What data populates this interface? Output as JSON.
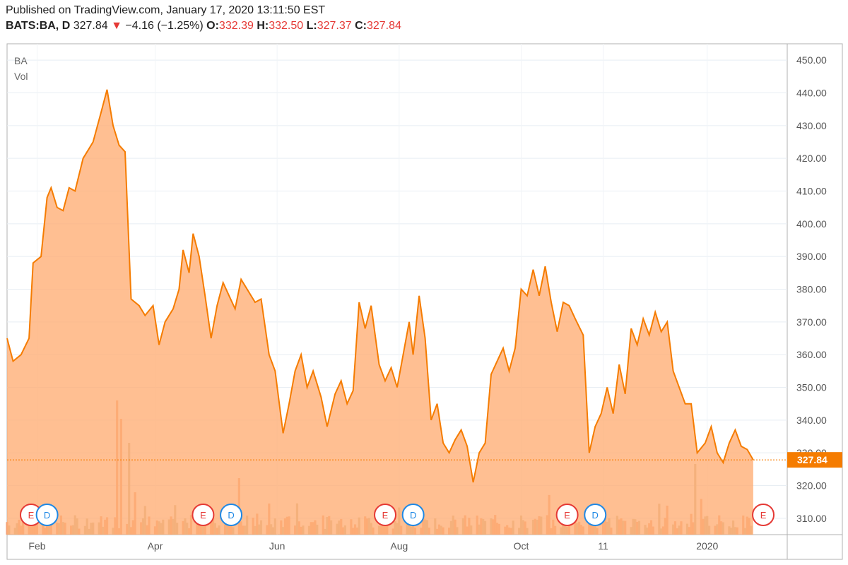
{
  "header": {
    "published": "Published on TradingView.com, January 17, 2020 13:11:50 EST",
    "symbol": "BATS:BA, D",
    "last": "327.84",
    "change_arrow": "▼",
    "change": "−4.16 (−1.25%)",
    "o_label": "O:",
    "o_value": "332.39",
    "h_label": "H:",
    "h_value": "332.50",
    "l_label": "L:",
    "l_value": "327.37",
    "c_label": "C:",
    "c_value": "327.84"
  },
  "colors": {
    "line": "#f57c00",
    "fill": "#ffad73",
    "vol_up": "#c8b48a",
    "vol_down": "#f59a6a",
    "earnings": "#e53935",
    "dividend": "#1e88e5",
    "price_tag": "#f57c00"
  },
  "chart_data": {
    "type": "area",
    "title": "BA",
    "secondary_label": "Vol",
    "ylim": [
      305,
      455
    ],
    "yticks": [
      "450.00",
      "440.00",
      "430.00",
      "420.00",
      "410.00",
      "400.00",
      "390.00",
      "380.00",
      "370.00",
      "360.00",
      "350.00",
      "340.00",
      "330.00",
      "320.00",
      "310.00"
    ],
    "ytick_values": [
      450,
      440,
      430,
      420,
      410,
      400,
      390,
      380,
      370,
      360,
      350,
      340,
      330,
      320,
      310
    ],
    "xticks": [
      "Feb",
      "Apr",
      "Jun",
      "Aug",
      "Oct",
      "11",
      "2020"
    ],
    "xtick_dates": [
      "2019-02-01",
      "2019-04-01",
      "2019-06-01",
      "2019-08-01",
      "2019-10-01",
      "2019-11-11",
      "2020-01-02"
    ],
    "x_start": "2019-01-17",
    "last_price_label": "327.84",
    "series": [
      {
        "points": [
          [
            "2019-01-17",
            365
          ],
          [
            "2019-01-20",
            358
          ],
          [
            "2019-01-24",
            360
          ],
          [
            "2019-01-28",
            365
          ],
          [
            "2019-01-30",
            388
          ],
          [
            "2019-02-03",
            390
          ],
          [
            "2019-02-06",
            408
          ],
          [
            "2019-02-08",
            411
          ],
          [
            "2019-02-11",
            405
          ],
          [
            "2019-02-14",
            404
          ],
          [
            "2019-02-17",
            411
          ],
          [
            "2019-02-20",
            410
          ],
          [
            "2019-02-24",
            420
          ],
          [
            "2019-02-27",
            423
          ],
          [
            "2019-03-01",
            425
          ],
          [
            "2019-03-05",
            434
          ],
          [
            "2019-03-08",
            441
          ],
          [
            "2019-03-11",
            430
          ],
          [
            "2019-03-14",
            424
          ],
          [
            "2019-03-17",
            422
          ],
          [
            "2019-03-20",
            377
          ],
          [
            "2019-03-24",
            375
          ],
          [
            "2019-03-27",
            372
          ],
          [
            "2019-03-31",
            375
          ],
          [
            "2019-04-03",
            363
          ],
          [
            "2019-04-06",
            370
          ],
          [
            "2019-04-10",
            374
          ],
          [
            "2019-04-13",
            380
          ],
          [
            "2019-04-15",
            392
          ],
          [
            "2019-04-18",
            385
          ],
          [
            "2019-04-20",
            397
          ],
          [
            "2019-04-23",
            390
          ],
          [
            "2019-04-26",
            378
          ],
          [
            "2019-04-29",
            365
          ],
          [
            "2019-05-02",
            375
          ],
          [
            "2019-05-05",
            382
          ],
          [
            "2019-05-08",
            378
          ],
          [
            "2019-05-11",
            374
          ],
          [
            "2019-05-14",
            383
          ],
          [
            "2019-05-17",
            380
          ],
          [
            "2019-05-21",
            376
          ],
          [
            "2019-05-24",
            377
          ],
          [
            "2019-05-28",
            360
          ],
          [
            "2019-05-31",
            355
          ],
          [
            "2019-06-04",
            336
          ],
          [
            "2019-06-07",
            345
          ],
          [
            "2019-06-10",
            355
          ],
          [
            "2019-06-13",
            360
          ],
          [
            "2019-06-16",
            350
          ],
          [
            "2019-06-19",
            355
          ],
          [
            "2019-06-23",
            347
          ],
          [
            "2019-06-26",
            338
          ],
          [
            "2019-06-30",
            348
          ],
          [
            "2019-07-03",
            352
          ],
          [
            "2019-07-06",
            345
          ],
          [
            "2019-07-09",
            349
          ],
          [
            "2019-07-12",
            376
          ],
          [
            "2019-07-15",
            368
          ],
          [
            "2019-07-18",
            375
          ],
          [
            "2019-07-22",
            357
          ],
          [
            "2019-07-25",
            352
          ],
          [
            "2019-07-28",
            356
          ],
          [
            "2019-07-31",
            350
          ],
          [
            "2019-08-03",
            360
          ],
          [
            "2019-08-06",
            370
          ],
          [
            "2019-08-08",
            360
          ],
          [
            "2019-08-11",
            378
          ],
          [
            "2019-08-14",
            365
          ],
          [
            "2019-08-17",
            340
          ],
          [
            "2019-08-20",
            345
          ],
          [
            "2019-08-23",
            333
          ],
          [
            "2019-08-26",
            330
          ],
          [
            "2019-08-29",
            334
          ],
          [
            "2019-09-01",
            337
          ],
          [
            "2019-09-04",
            332
          ],
          [
            "2019-09-07",
            321
          ],
          [
            "2019-09-10",
            330
          ],
          [
            "2019-09-13",
            333
          ],
          [
            "2019-09-16",
            354
          ],
          [
            "2019-09-19",
            358
          ],
          [
            "2019-09-22",
            362
          ],
          [
            "2019-09-25",
            355
          ],
          [
            "2019-09-28",
            362
          ],
          [
            "2019-10-01",
            380
          ],
          [
            "2019-10-04",
            378
          ],
          [
            "2019-10-07",
            386
          ],
          [
            "2019-10-10",
            378
          ],
          [
            "2019-10-13",
            387
          ],
          [
            "2019-10-16",
            376
          ],
          [
            "2019-10-19",
            367
          ],
          [
            "2019-10-22",
            376
          ],
          [
            "2019-10-25",
            375
          ],
          [
            "2019-10-28",
            371
          ],
          [
            "2019-11-01",
            366
          ],
          [
            "2019-11-04",
            330
          ],
          [
            "2019-11-07",
            338
          ],
          [
            "2019-11-10",
            342
          ],
          [
            "2019-11-13",
            350
          ],
          [
            "2019-11-16",
            342
          ],
          [
            "2019-11-19",
            357
          ],
          [
            "2019-11-22",
            348
          ],
          [
            "2019-11-25",
            368
          ],
          [
            "2019-11-28",
            363
          ],
          [
            "2019-12-01",
            371
          ],
          [
            "2019-12-04",
            366
          ],
          [
            "2019-12-07",
            373
          ],
          [
            "2019-12-10",
            367
          ],
          [
            "2019-12-13",
            370
          ],
          [
            "2019-12-16",
            355
          ],
          [
            "2019-12-19",
            350
          ],
          [
            "2019-12-22",
            345
          ],
          [
            "2019-12-25",
            345
          ],
          [
            "2019-12-28",
            330
          ],
          [
            "2020-01-01",
            333
          ],
          [
            "2020-01-04",
            338
          ],
          [
            "2020-01-07",
            330
          ],
          [
            "2020-01-10",
            327
          ],
          [
            "2020-01-13",
            333
          ],
          [
            "2020-01-16",
            337
          ],
          [
            "2020-01-19",
            332
          ],
          [
            "2020-01-22",
            331
          ],
          [
            "2020-01-25",
            327.84
          ]
        ]
      }
    ],
    "volume_seed": 7,
    "volume_spikes": [
      [
        "2019-03-13",
        0.95
      ],
      [
        "2019-03-15",
        0.82
      ],
      [
        "2019-03-19",
        0.65
      ],
      [
        "2019-03-22",
        0.3
      ],
      [
        "2019-05-13",
        0.4
      ],
      [
        "2019-11-02",
        0.45
      ],
      [
        "2019-12-27",
        0.5
      ],
      [
        "2020-01-12",
        0.4
      ]
    ],
    "events": [
      {
        "type": "E",
        "label": "E",
        "date": "2019-01-29"
      },
      {
        "type": "D",
        "label": "D",
        "date": "2019-02-06"
      },
      {
        "type": "E",
        "label": "E",
        "date": "2019-04-25"
      },
      {
        "type": "D",
        "label": "D",
        "date": "2019-05-09"
      },
      {
        "type": "E",
        "label": "E",
        "date": "2019-07-25"
      },
      {
        "type": "D",
        "label": "D",
        "date": "2019-08-08"
      },
      {
        "type": "E",
        "label": "E",
        "date": "2019-10-24"
      },
      {
        "type": "D",
        "label": "D",
        "date": "2019-11-07"
      },
      {
        "type": "E",
        "label": "E",
        "date": "2020-01-30"
      }
    ]
  }
}
